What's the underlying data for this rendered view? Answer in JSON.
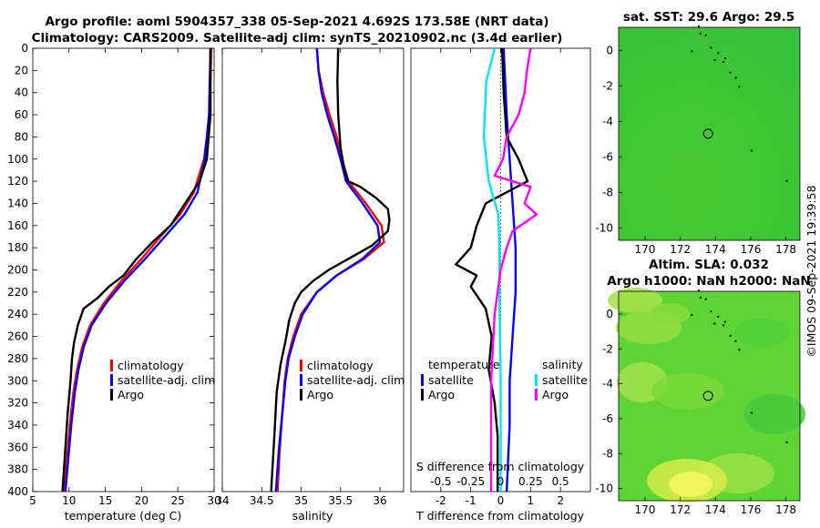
{
  "header": {
    "title_line1": "Argo profile: aoml 5904357_338 05-Sep-2021 4.692S 173.58E (NRT data)",
    "title_line2": "Climatology: CARS2009. Satellite-adj clim: synTS_20210902.nc (3.4d earlier)"
  },
  "timestamp": "©IMOS 09-Sep-2021 19:39:58",
  "colors": {
    "climatology": "#ff0000",
    "satellite": "#0000ff",
    "argo": "#000000",
    "salinity_sat": "#00e5ff",
    "salinity_diff": "#ff00ff",
    "map_fill": "#33cc33"
  },
  "chart_data": [
    {
      "id": "temperature",
      "type": "line",
      "xlabel": "temperature (deg C)",
      "ylabel": "",
      "xlim": [
        5,
        30
      ],
      "xticks": [
        5,
        10,
        15,
        20,
        25,
        30
      ],
      "ylim": [
        400,
        0
      ],
      "yticks": [
        0,
        20,
        40,
        60,
        80,
        100,
        120,
        140,
        160,
        180,
        200,
        220,
        240,
        260,
        280,
        300,
        320,
        340,
        360,
        380,
        400
      ],
      "legend": [
        "climatology",
        "satellite-adj. clim",
        "Argo"
      ],
      "series": [
        {
          "name": "climatology",
          "depth": [
            0,
            60,
            100,
            130,
            150,
            170,
            190,
            210,
            230,
            250,
            270,
            290,
            310,
            340,
            370,
            400
          ],
          "values": [
            29.6,
            29.4,
            28.6,
            27.2,
            25.3,
            22.6,
            20.0,
            17.2,
            14.8,
            12.9,
            11.8,
            11.1,
            10.6,
            10.1,
            9.7,
            9.3
          ]
        },
        {
          "name": "satellite-adj. clim",
          "depth": [
            0,
            60,
            100,
            130,
            150,
            170,
            190,
            210,
            230,
            250,
            270,
            290,
            310,
            340,
            370,
            400
          ],
          "values": [
            29.5,
            29.3,
            28.7,
            27.7,
            25.9,
            23.2,
            20.5,
            17.6,
            15.1,
            13.1,
            12.0,
            11.3,
            10.8,
            10.3,
            9.9,
            9.5
          ]
        },
        {
          "name": "Argo",
          "depth": [
            0,
            60,
            100,
            120,
            140,
            160,
            175,
            190,
            205,
            215,
            225,
            235,
            250,
            265,
            280,
            300,
            330,
            360,
            400
          ],
          "values": [
            29.5,
            29.5,
            29.0,
            28.0,
            26.0,
            24.0,
            21.5,
            19.3,
            17.5,
            15.5,
            14.0,
            12.0,
            11.2,
            10.7,
            10.4,
            10.2,
            9.8,
            9.5,
            9.1
          ]
        }
      ]
    },
    {
      "id": "salinity",
      "type": "line",
      "xlabel": "salinity",
      "xlim": [
        34,
        36.3
      ],
      "xticks": [
        34,
        34.5,
        35,
        35.5,
        36
      ],
      "ylim": [
        400,
        0
      ],
      "legend": [
        "climatology",
        "satellite-adj. clim",
        "Argo"
      ],
      "series": [
        {
          "name": "climatology",
          "depth": [
            0,
            20,
            40,
            60,
            80,
            100,
            120,
            140,
            160,
            175,
            190,
            205,
            220,
            240,
            260,
            280,
            300,
            330,
            360,
            400
          ],
          "values": [
            35.2,
            35.22,
            35.28,
            35.36,
            35.45,
            35.52,
            35.6,
            35.82,
            36.02,
            36.05,
            35.8,
            35.45,
            35.2,
            35.0,
            34.9,
            34.83,
            34.79,
            34.76,
            34.73,
            34.7
          ]
        },
        {
          "name": "satellite-adj. clim",
          "depth": [
            0,
            20,
            40,
            60,
            80,
            100,
            120,
            140,
            160,
            175,
            190,
            205,
            220,
            240,
            260,
            280,
            300,
            330,
            360,
            400
          ],
          "values": [
            35.2,
            35.22,
            35.26,
            35.33,
            35.42,
            35.5,
            35.57,
            35.78,
            35.97,
            36.0,
            35.78,
            35.45,
            35.2,
            35.02,
            34.92,
            34.84,
            34.8,
            34.76,
            34.72,
            34.68
          ]
        },
        {
          "name": "Argo",
          "depth": [
            0,
            30,
            60,
            90,
            110,
            120,
            125,
            135,
            145,
            155,
            165,
            178,
            190,
            200,
            210,
            220,
            230,
            245,
            265,
            285,
            310,
            350,
            400
          ],
          "values": [
            35.47,
            35.46,
            35.47,
            35.5,
            35.55,
            35.6,
            35.75,
            35.95,
            36.1,
            36.12,
            36.1,
            35.9,
            35.6,
            35.35,
            35.15,
            35.0,
            34.92,
            34.85,
            34.8,
            34.74,
            34.69,
            34.66,
            34.62
          ]
        }
      ]
    },
    {
      "id": "differences",
      "type": "line",
      "xlabel": "T difference from climatology",
      "xlim": [
        -3,
        3
      ],
      "xticks": [
        -2,
        -1,
        0,
        1,
        2
      ],
      "secondary_xlabel": "S difference from climatology",
      "secondary_ticks": [
        "-0.5",
        "-0.25",
        "0",
        "0.25",
        "0.5"
      ],
      "secondary_tick_values": [
        -0.5,
        -0.25,
        0,
        0.25,
        0.5
      ],
      "ylim": [
        400,
        0
      ],
      "legend_groups": [
        {
          "title": "temperature",
          "items": [
            "satellite",
            "Argo"
          ]
        },
        {
          "title": "salinity",
          "items": [
            "satellite",
            "Argo"
          ]
        }
      ],
      "series": [
        {
          "name": "temperature satellite",
          "depth": [
            0,
            60,
            100,
            140,
            180,
            220,
            260,
            300,
            340,
            400
          ],
          "values": [
            0.1,
            0.2,
            0.3,
            0.4,
            0.5,
            0.5,
            0.4,
            0.3,
            0.3,
            0.2
          ]
        },
        {
          "name": "temperature Argo",
          "depth": [
            0,
            40,
            80,
            100,
            120,
            140,
            160,
            180,
            195,
            205,
            215,
            235,
            260,
            290,
            320,
            350,
            400
          ],
          "values": [
            0.05,
            0.1,
            0.2,
            0.6,
            0.9,
            -0.5,
            -0.8,
            -1.0,
            -1.5,
            -0.8,
            -1.0,
            -0.5,
            -0.3,
            -0.4,
            -0.2,
            -0.1,
            -0.1
          ]
        },
        {
          "name": "salinity satellite",
          "depth": [
            0,
            30,
            80,
            120,
            150,
            180,
            230,
            300,
            400
          ],
          "values": [
            -0.05,
            -0.12,
            -0.14,
            -0.1,
            -0.02,
            -0.01,
            -0.01,
            0.0,
            0.0
          ]
        },
        {
          "name": "salinity Argo",
          "depth": [
            0,
            20,
            40,
            60,
            80,
            100,
            115,
            125,
            140,
            150,
            165,
            180,
            200,
            240,
            300,
            400
          ],
          "values": [
            0.25,
            0.22,
            0.2,
            0.15,
            0.05,
            0.02,
            -0.05,
            0.25,
            0.2,
            0.3,
            0.1,
            0.05,
            0.0,
            -0.05,
            -0.08,
            -0.08
          ]
        }
      ]
    },
    {
      "id": "map_sst",
      "type": "heatmap",
      "title": "sat. SST: 29.6 Argo: 29.5",
      "xlim": [
        168.5,
        178.8
      ],
      "ylim": [
        -10.7,
        1.3
      ],
      "xticks": [
        170,
        172,
        174,
        176,
        178
      ],
      "yticks": [
        0,
        -2,
        -4,
        -6,
        -8,
        -10
      ],
      "argo_position": {
        "lon": 173.58,
        "lat": -4.692
      }
    },
    {
      "id": "map_sla",
      "type": "heatmap",
      "title_line1": "Altim. SLA: 0.032",
      "title_line2": "Argo h1000: NaN h2000: NaN",
      "xlim": [
        168.5,
        178.8
      ],
      "ylim": [
        -10.7,
        1.3
      ],
      "xticks": [
        170,
        172,
        174,
        176,
        178
      ],
      "yticks": [
        0,
        -2,
        -4,
        -6,
        -8,
        -10
      ],
      "argo_position": {
        "lon": 173.58,
        "lat": -4.692
      }
    }
  ]
}
